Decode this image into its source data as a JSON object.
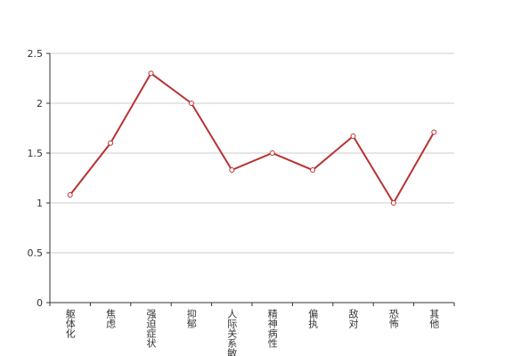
{
  "chart_data": {
    "type": "line",
    "categories": [
      "躯体化",
      "焦虑",
      "强迫症状",
      "抑郁",
      "人际关系敏感",
      "精神病性",
      "偏执",
      "敌对",
      "恐怖",
      "其他"
    ],
    "values": [
      1.08,
      1.6,
      2.3,
      2.0,
      1.33,
      1.5,
      1.33,
      1.67,
      1.0,
      1.71
    ],
    "color": "#b83232",
    "ylim": [
      0,
      2.5
    ],
    "yticks": [
      0,
      0.5,
      1,
      1.5,
      2,
      2.5
    ],
    "grid": true
  }
}
